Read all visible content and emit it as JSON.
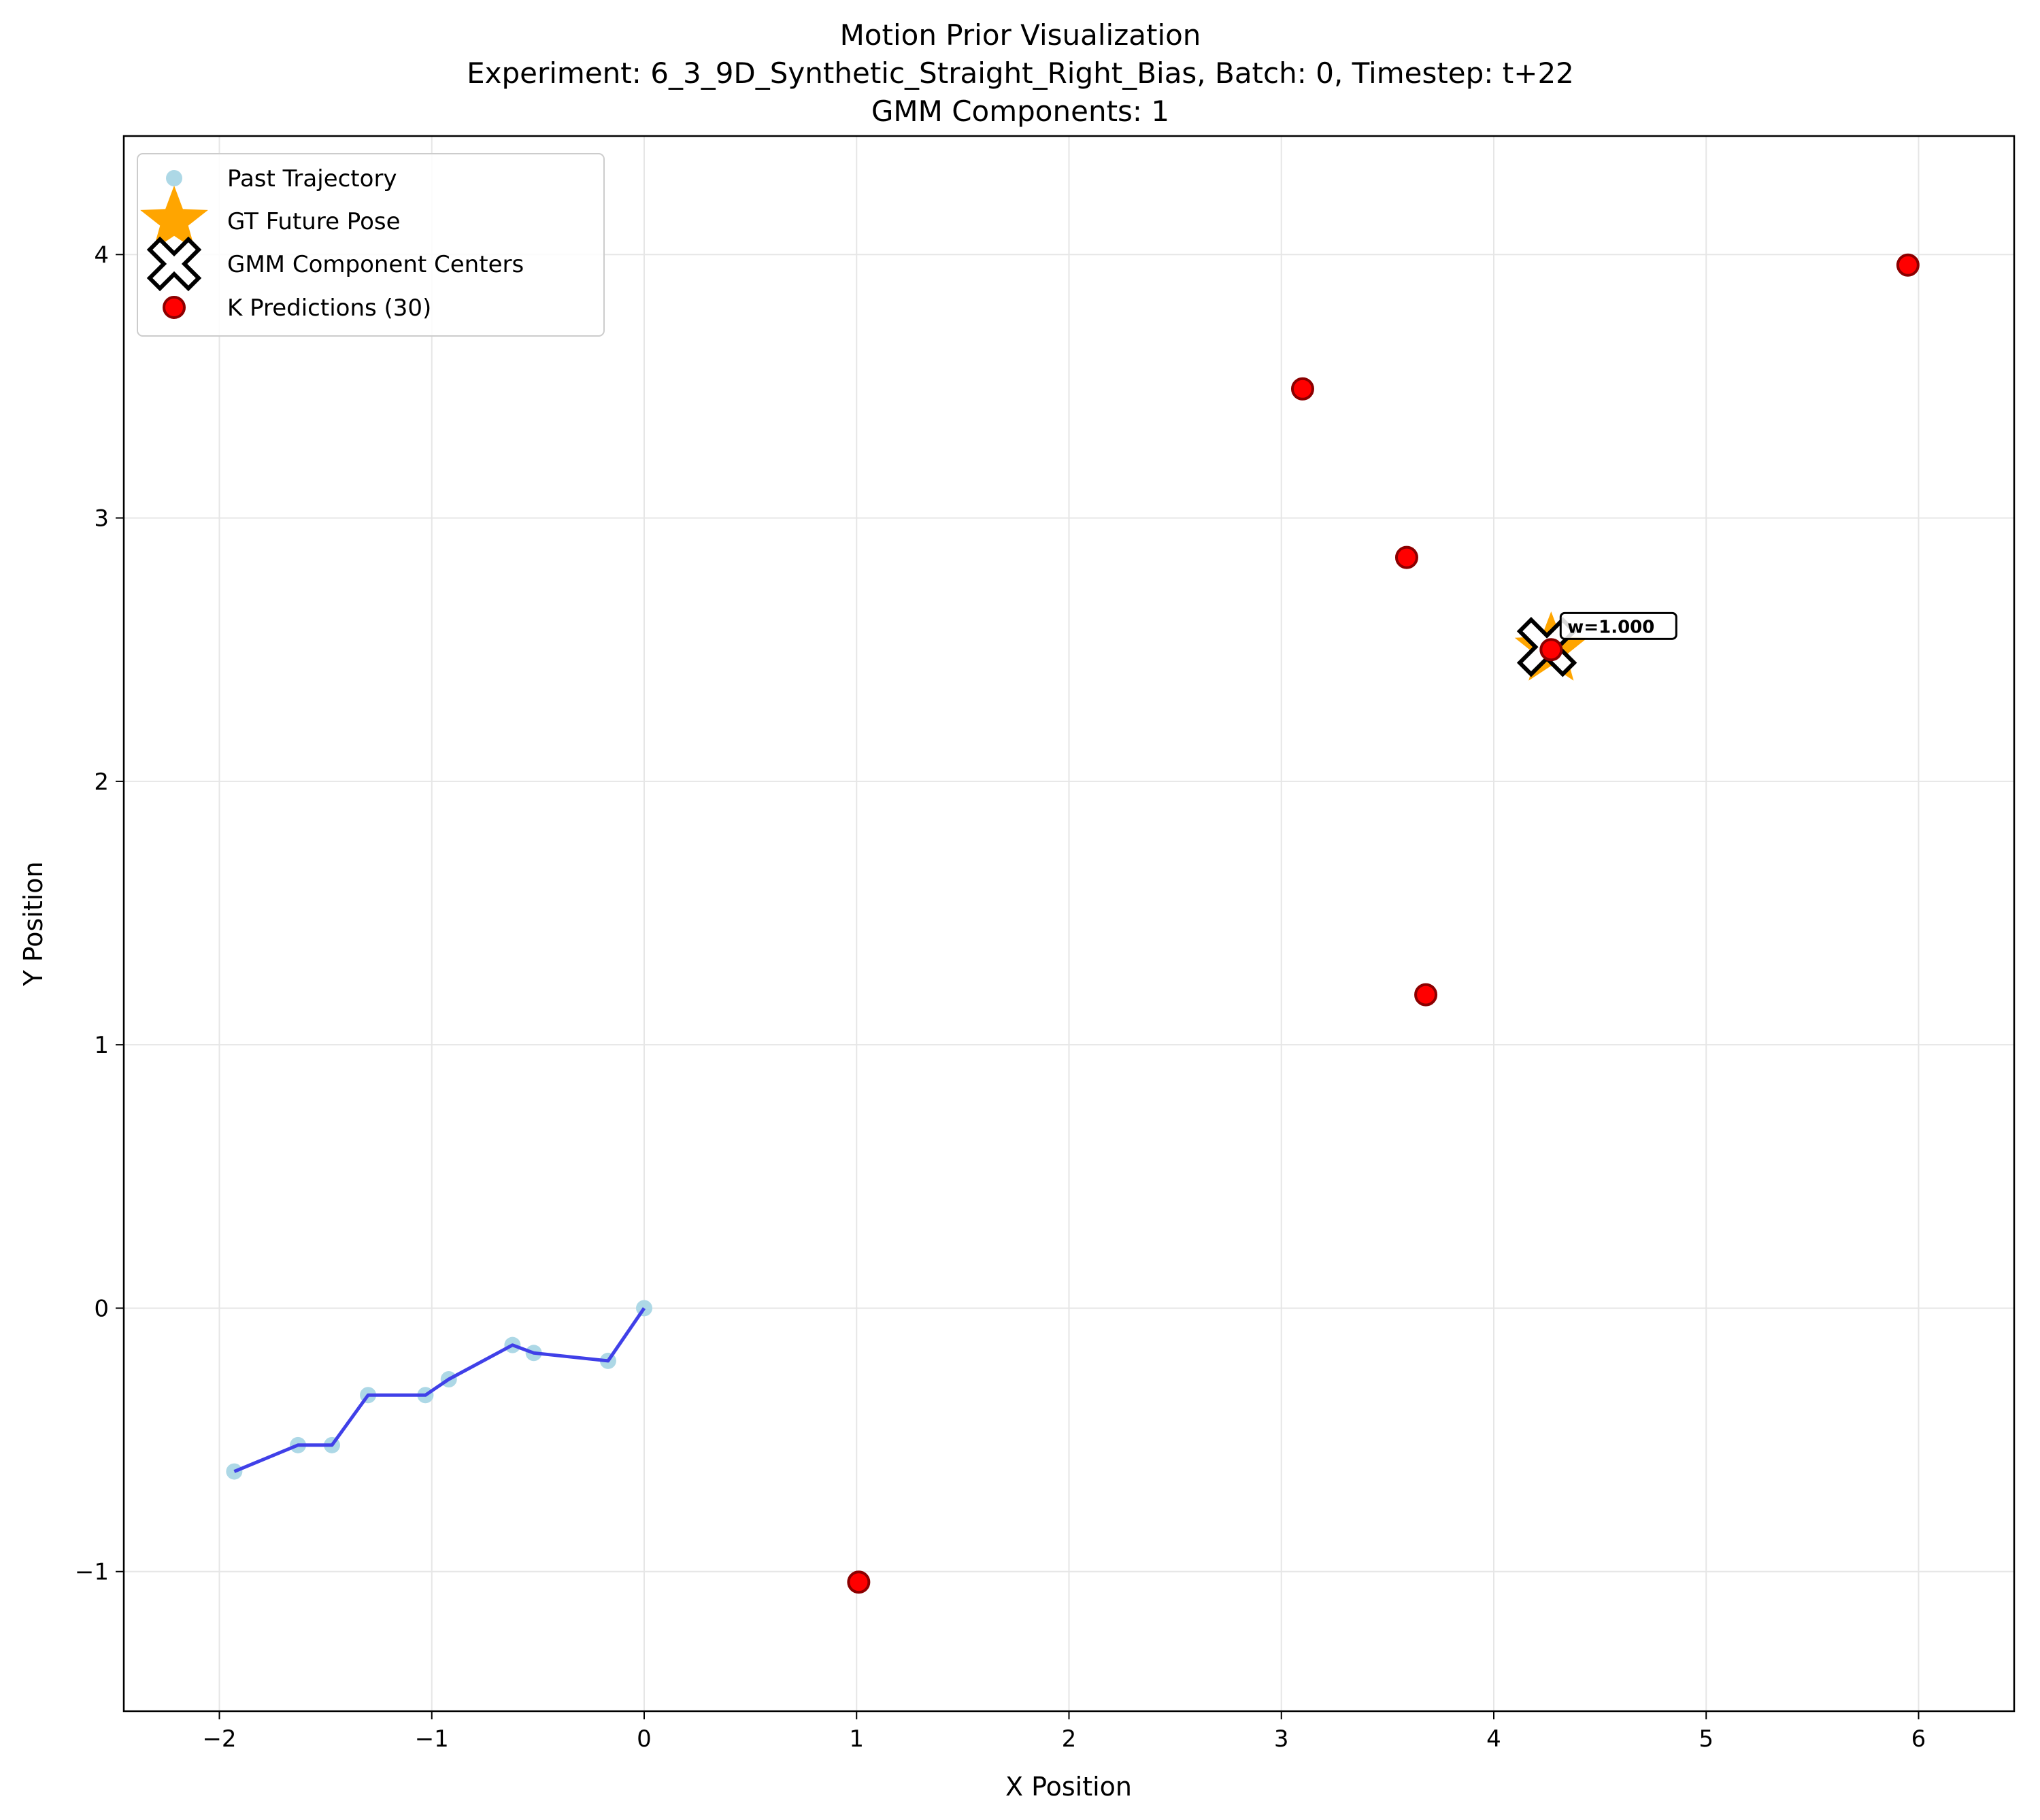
{
  "chart_data": {
    "type": "scatter",
    "title_lines": [
      "Motion Prior Visualization",
      "Experiment: 6_3_9D_Synthetic_Straight_Right_Bias, Batch: 0, Timestep: t+22",
      "GMM Components: 1"
    ],
    "xlabel": "X Position",
    "ylabel": "Y Position",
    "xlim": [
      -2.45,
      6.45
    ],
    "ylim": [
      -1.53,
      4.45
    ],
    "x_ticks": [
      -2,
      -1,
      0,
      1,
      2,
      3,
      4,
      5,
      6
    ],
    "x_tick_labels": [
      "−2",
      "−1",
      "0",
      "1",
      "2",
      "3",
      "4",
      "5",
      "6"
    ],
    "y_ticks": [
      -1,
      0,
      1,
      2,
      3,
      4
    ],
    "y_tick_labels": [
      "−1",
      "0",
      "1",
      "2",
      "3",
      "4"
    ],
    "grid": true,
    "legend_position": "top-left",
    "legend": [
      {
        "label": "Past Trajectory",
        "marker": "circle-lightblue"
      },
      {
        "label": "GT Future Pose",
        "marker": "star-orange"
      },
      {
        "label": "GMM Component Centers",
        "marker": "x-white-black"
      },
      {
        "label": "K Predictions (30)",
        "marker": "circle-red"
      }
    ],
    "series": [
      {
        "name": "Past Trajectory",
        "kind": "scatter+line",
        "marker_color": "#add8e6",
        "line_color": "#4040e8",
        "points": [
          [
            -1.93,
            -0.62
          ],
          [
            -1.63,
            -0.52
          ],
          [
            -1.47,
            -0.52
          ],
          [
            -1.3,
            -0.33
          ],
          [
            -1.03,
            -0.33
          ],
          [
            -0.92,
            -0.27
          ],
          [
            -0.62,
            -0.14
          ],
          [
            -0.52,
            -0.17
          ],
          [
            -0.17,
            -0.2
          ],
          [
            0.0,
            0.0
          ]
        ]
      },
      {
        "name": "GT Future Pose",
        "kind": "star",
        "color": "#ffa500",
        "points": [
          [
            4.27,
            2.5
          ]
        ]
      },
      {
        "name": "GMM Component Centers",
        "kind": "x",
        "color": "#ffffff",
        "edge_color": "#000000",
        "points": [
          [
            4.25,
            2.51
          ]
        ]
      },
      {
        "name": "K Predictions (30)",
        "kind": "scatter",
        "color": "#ff0000",
        "edge_color": "#8b0000",
        "points": [
          [
            5.95,
            3.96
          ],
          [
            3.1,
            3.49
          ],
          [
            3.59,
            2.85
          ],
          [
            4.27,
            2.5
          ],
          [
            3.68,
            1.19
          ],
          [
            1.01,
            -1.04
          ]
        ]
      }
    ],
    "annotations": [
      {
        "text": "w=1.000",
        "x": 4.27,
        "y": 2.51
      }
    ]
  }
}
